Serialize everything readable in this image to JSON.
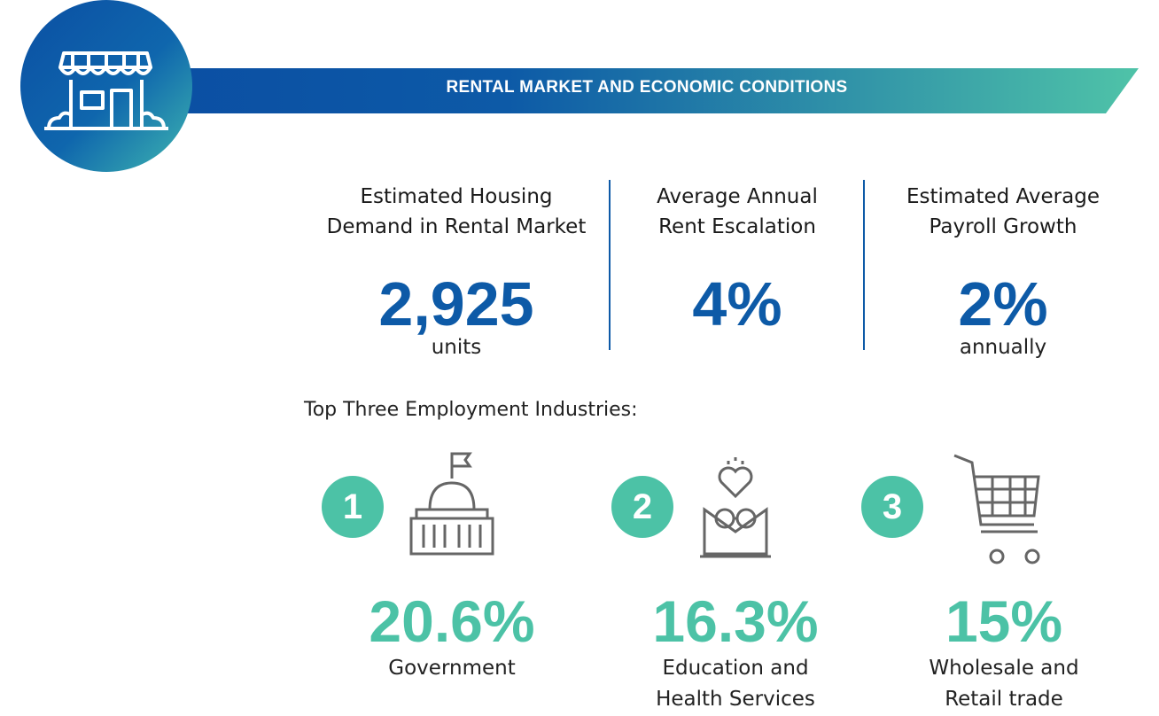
{
  "header": {
    "title": "RENTAL MARKET AND ECONOMIC CONDITIONS"
  },
  "stats": [
    {
      "label": [
        "Estimated Housing",
        "Demand in Rental Market"
      ],
      "value": "2,925",
      "unit": "units"
    },
    {
      "label": [
        "Average Annual",
        "Rent Escalation"
      ],
      "value": "4%"
    },
    {
      "label": [
        "Estimated Average",
        "Payroll Growth"
      ],
      "value": "2%",
      "unit": "annually"
    }
  ],
  "industries_heading": "Top Three Employment Industries:",
  "industries": [
    {
      "rank": "1",
      "value": "20.6%",
      "name": [
        "Government"
      ]
    },
    {
      "rank": "2",
      "value": "16.3%",
      "name": [
        "Education and",
        "Health Services"
      ]
    },
    {
      "rank": "3",
      "value": "15%",
      "name": [
        "Wholesale and",
        "Retail trade"
      ]
    }
  ]
}
